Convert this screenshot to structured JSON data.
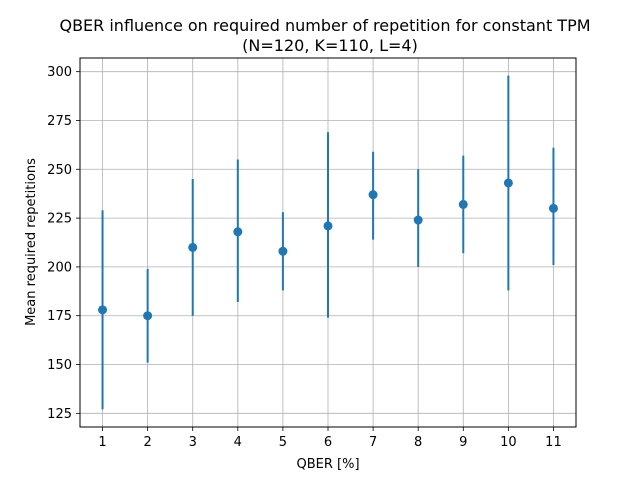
{
  "chart_data": {
    "type": "scatter",
    "title_line1": "QBER influence on required number of repetition for constant TPM",
    "title_line2": "(N=120, K=110, L=4)",
    "xlabel": "QBER [%]",
    "ylabel": "Mean required repetitions",
    "x": [
      1,
      2,
      3,
      4,
      5,
      6,
      7,
      8,
      9,
      10,
      11
    ],
    "y": [
      178,
      175,
      210,
      218,
      208,
      221,
      237,
      224,
      232,
      243,
      230
    ],
    "err_low": [
      127,
      151,
      175,
      182,
      188,
      174,
      214,
      200,
      207,
      188,
      201
    ],
    "err_high": [
      229,
      199,
      245,
      255,
      228,
      269,
      259,
      250,
      257,
      298,
      261
    ],
    "xticks": [
      1,
      2,
      3,
      4,
      5,
      6,
      7,
      8,
      9,
      10,
      11
    ],
    "yticks": [
      125,
      150,
      175,
      200,
      225,
      250,
      275,
      300
    ],
    "xlim": [
      0.5,
      11.5
    ],
    "ylim": [
      118,
      307
    ],
    "grid": true,
    "color": "#1f77b4"
  }
}
